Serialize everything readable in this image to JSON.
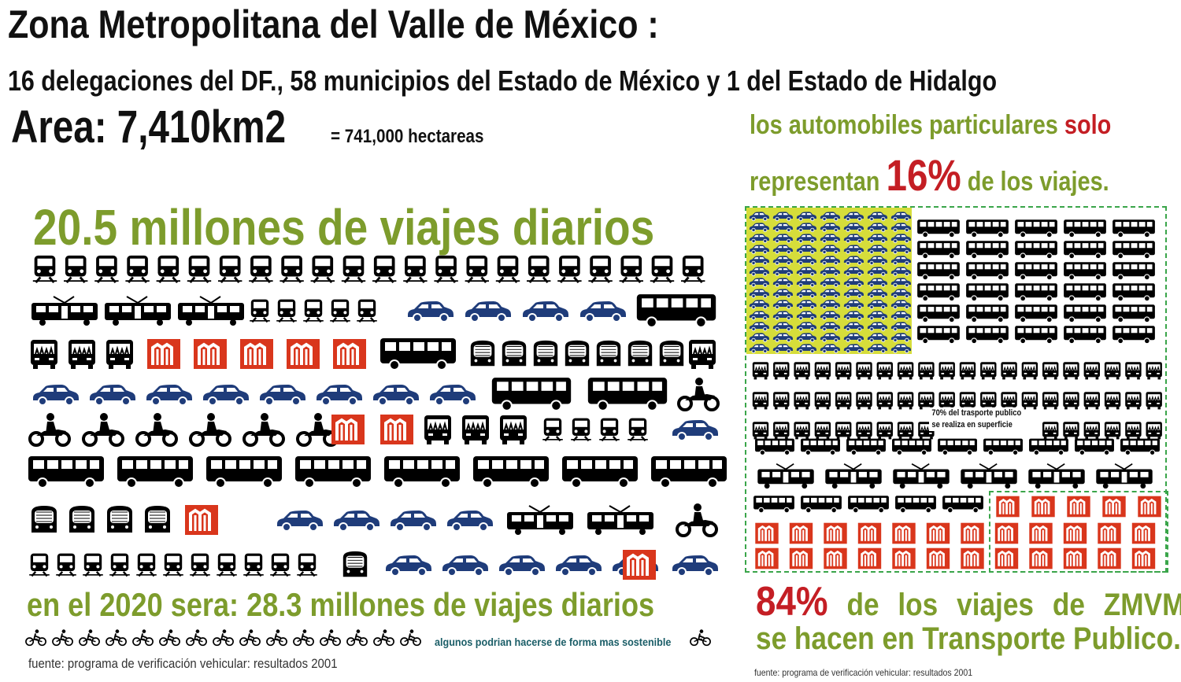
{
  "header": {
    "title": "Zona Metropolitana del Valle de México :",
    "subtitle": "16 delegaciones del DF., 58 municipios del Estado de México y 1 del Estado de Hidalgo",
    "area": "Area: 7,410km2",
    "hectares": "= 741,000 hectareas"
  },
  "left": {
    "trips_today": "20.5 millones de viajes diarios",
    "trips_2020": "en el 2020 sera: 28.3 millones de viajes diarios",
    "sustainable_note": "algunos podrian hacerse de forma mas sostenible",
    "source": "fuente: programa de verificación vehicular: resultados 2001"
  },
  "right": {
    "cars_line1_a": "los automobiles particulares ",
    "cars_line1_b": "solo",
    "cars_line2_a": "representan ",
    "cars_line2_pct": "16%",
    "cars_line2_b": " de los viajes.",
    "note70_line1": "70% del trasporte publico",
    "note70_line2": "se realiza en superficie",
    "pct84": "84%",
    "pct84_text": "de los viajes de ZMVM",
    "transport_line": "se hacen en Transporte Publico.",
    "source": "fuente: programa de verificación vehicular: resultados 2001"
  },
  "icons": {
    "train": "train-front-icon",
    "tram": "tram-icon",
    "car": "car-icon",
    "bus": "bus-icon",
    "minibus": "minibus-front-icon",
    "metro": "metro-logo-icon",
    "metro_front": "metro-front-icon",
    "moto": "motorcycle-icon",
    "bike": "bicycle-icon"
  },
  "colors": {
    "green_text": "#7d9c2c",
    "red_accent": "#c41e24",
    "car_blue": "#1f3c7a",
    "metro_red": "#d9361c",
    "teal_note": "#1a5d67",
    "dashed_box": "#3aa54a",
    "highlight_yellow": "#d6dd3a"
  }
}
